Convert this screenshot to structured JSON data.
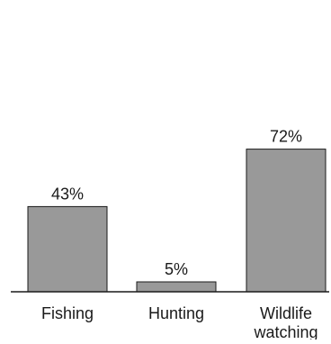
{
  "chart_data": {
    "type": "bar",
    "categories": [
      "Fishing",
      "Hunting",
      "Wildlife watching"
    ],
    "category_label_lines": [
      [
        "Fishing"
      ],
      [
        "Hunting"
      ],
      [
        "Wildlife",
        "watching"
      ]
    ],
    "values": [
      43,
      5,
      72
    ],
    "data_labels": [
      "43%",
      "5%",
      "72%"
    ],
    "title": "",
    "xlabel": "",
    "ylabel": "",
    "ylim": [
      0,
      100
    ],
    "grid": false,
    "legend": "none",
    "bar_color": "#999999",
    "bar_stroke": "#1a1a1a",
    "axis_color": "#1a1a1a"
  }
}
